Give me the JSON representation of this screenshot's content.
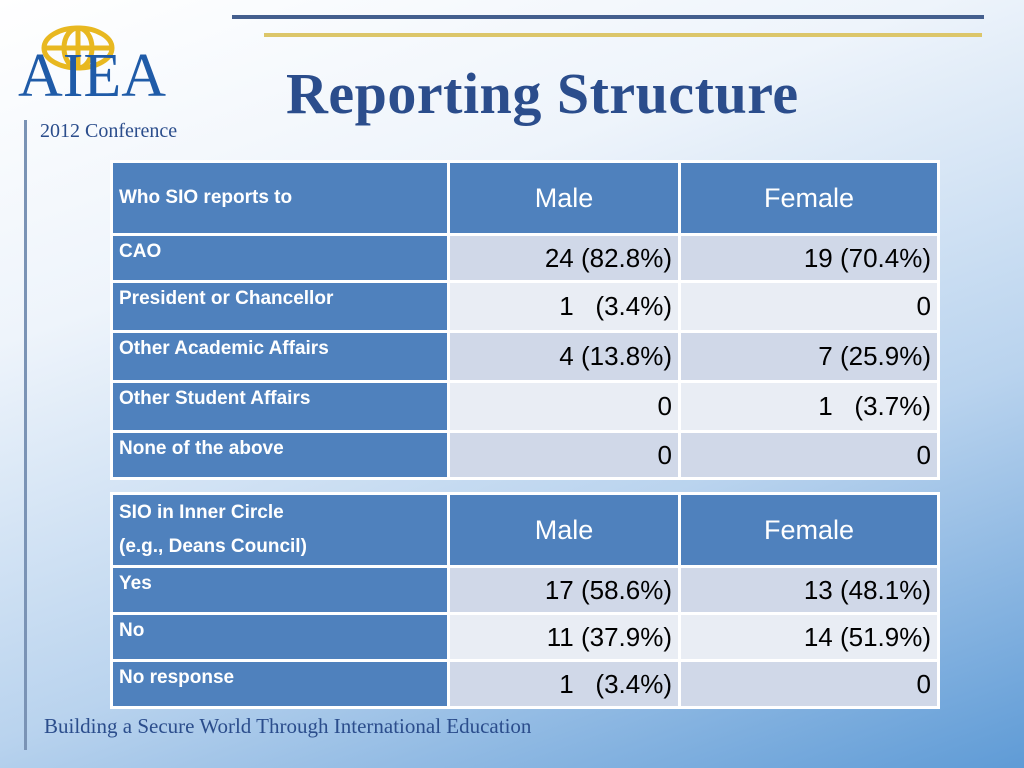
{
  "logo": {
    "text": "AIEA"
  },
  "conference": "2012 Conference",
  "title": "Reporting Structure",
  "table1": {
    "header": {
      "label": "Who SIO reports to",
      "male": "Male",
      "female": "Female"
    },
    "rows": [
      {
        "label": "CAO",
        "male": "24 (82.8%)",
        "female": "19 (70.4%)"
      },
      {
        "label": "President or Chancellor",
        "male": "1   (3.4%)",
        "female": "0"
      },
      {
        "label": "Other Academic Affairs",
        "male": "4 (13.8%)",
        "female": "7 (25.9%)"
      },
      {
        "label": "Other Student Affairs",
        "male": "0",
        "female": "1   (3.7%)"
      },
      {
        "label": "None of the above",
        "male": "0",
        "female": "0"
      }
    ]
  },
  "table2": {
    "header": {
      "label_line1": "SIO in Inner Circle",
      "label_line2": "(e.g., Deans Council)",
      "male": "Male",
      "female": "Female"
    },
    "rows": [
      {
        "label": "Yes",
        "male": "17 (58.6%)",
        "female": "13 (48.1%)"
      },
      {
        "label": "No",
        "male": "11 (37.9%)",
        "female": "14 (51.9%)"
      },
      {
        "label": "No response",
        "male": "1   (3.4%)",
        "female": "0"
      }
    ]
  },
  "footer": "Building a Secure World Through International Education"
}
